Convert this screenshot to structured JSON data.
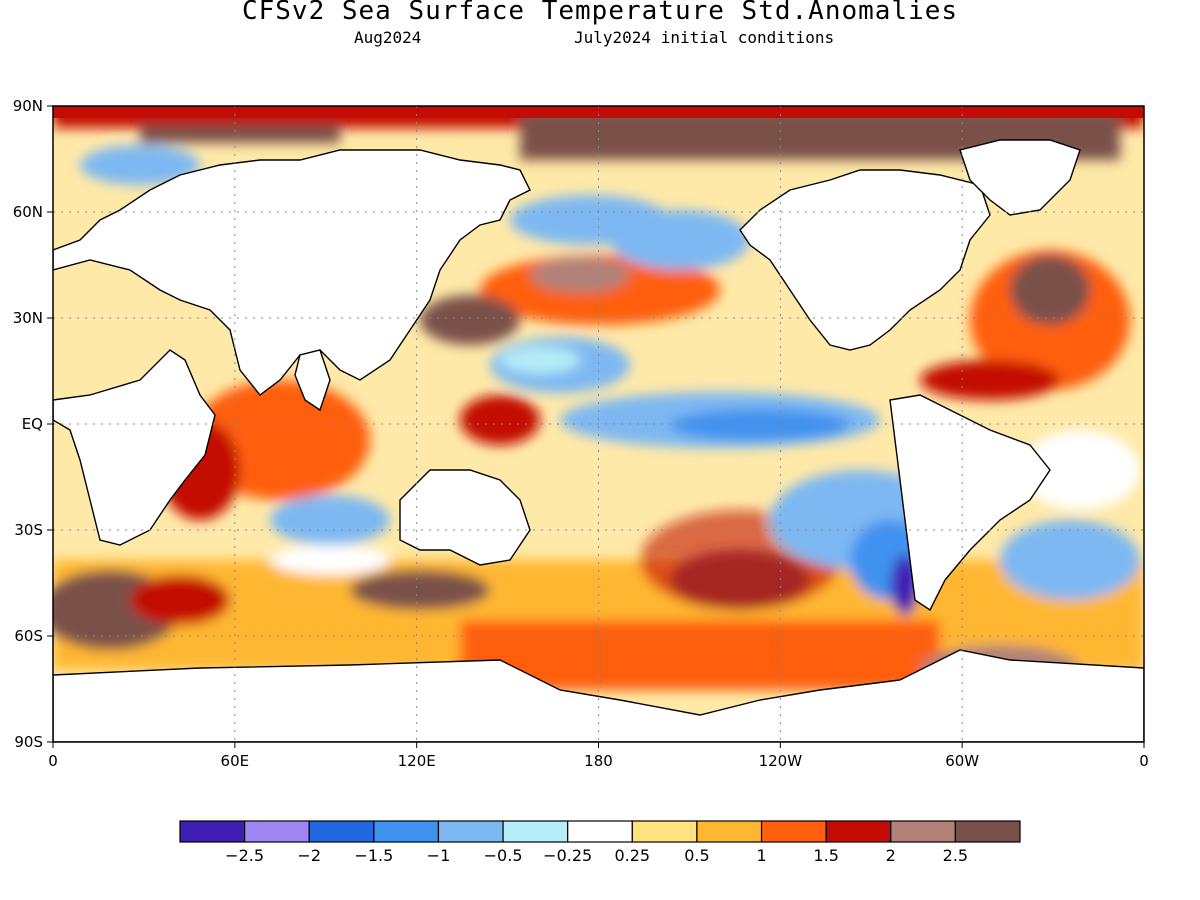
{
  "title": "CFSv2 Sea Surface Temperature Std.Anomalies",
  "subtitle_left": "Aug2024",
  "subtitle_right": "July2024 initial conditions",
  "map": {
    "lat_labels": [
      "90N",
      "60N",
      "30N",
      "EQ",
      "30S",
      "60S",
      "90S"
    ],
    "lon_labels": [
      "0",
      "60E",
      "120E",
      "180",
      "120W",
      "60W",
      "0"
    ],
    "grid": true
  },
  "colorbar": {
    "colors": [
      "#3f1fb3",
      "#9f86f2",
      "#1f68e0",
      "#3f92f0",
      "#7db8f2",
      "#b4ecf7",
      "#ffffff",
      "#ffe27f",
      "#ffb733",
      "#ff5f0e",
      "#c30c06",
      "#b08278",
      "#7a5148"
    ],
    "labels": [
      "-2.5",
      "-2",
      "-1.5",
      "-1",
      "-0.5",
      "-0.25",
      "0.25",
      "0.5",
      "1",
      "1.5",
      "2",
      "2.5"
    ]
  }
}
